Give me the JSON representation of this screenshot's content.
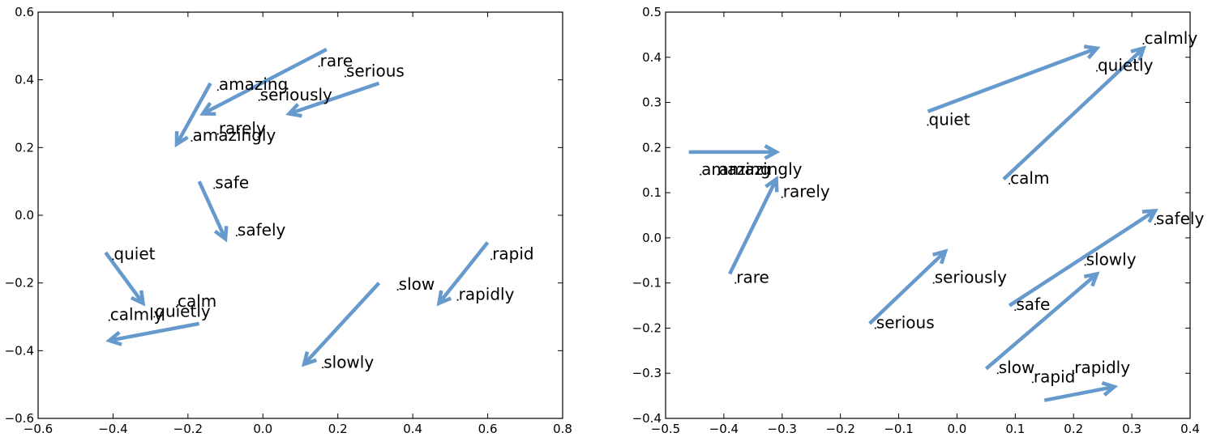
{
  "chart_data": [
    {
      "type": "scatter",
      "subtype": "word-vector-arrows",
      "title": "",
      "xlabel": "",
      "ylabel": "",
      "xlim": [
        -0.6,
        0.8
      ],
      "ylim": [
        -0.6,
        0.6
      ],
      "xticks": [
        "−0.6",
        "−0.4",
        "−0.2",
        "0.0",
        "0.2",
        "0.4",
        "0.6",
        "0.8"
      ],
      "xtick_values": [
        -0.6,
        -0.4,
        -0.2,
        0.0,
        0.2,
        0.4,
        0.6,
        0.8
      ],
      "yticks": [
        "−0.6",
        "−0.4",
        "−0.2",
        "0.0",
        "0.2",
        "0.4",
        "0.6"
      ],
      "ytick_values": [
        -0.6,
        -0.4,
        -0.2,
        0.0,
        0.2,
        0.4,
        0.6
      ],
      "grid": false,
      "arrow_color": "#6699cc",
      "labels": [
        {
          "text": "rare",
          "x": 0.15,
          "y": 0.44
        },
        {
          "text": "serious",
          "x": 0.22,
          "y": 0.41
        },
        {
          "text": "amazing",
          "x": -0.12,
          "y": 0.37
        },
        {
          "text": "seriously",
          "x": -0.01,
          "y": 0.34
        },
        {
          "text": "rarely",
          "x": -0.12,
          "y": 0.24
        },
        {
          "text": "amazingly",
          "x": -0.19,
          "y": 0.22
        },
        {
          "text": "safe",
          "x": -0.13,
          "y": 0.08
        },
        {
          "text": "safely",
          "x": -0.07,
          "y": -0.06
        },
        {
          "text": "quiet",
          "x": -0.4,
          "y": -0.13
        },
        {
          "text": "rapid",
          "x": 0.61,
          "y": -0.13
        },
        {
          "text": "slow",
          "x": 0.36,
          "y": -0.22
        },
        {
          "text": "rapidly",
          "x": 0.52,
          "y": -0.25
        },
        {
          "text": "calm",
          "x": -0.23,
          "y": -0.27
        },
        {
          "text": "quietly",
          "x": -0.29,
          "y": -0.3
        },
        {
          "text": "calmly",
          "x": -0.41,
          "y": -0.31
        },
        {
          "text": "slowly",
          "x": 0.16,
          "y": -0.45
        }
      ],
      "arrows": [
        {
          "from": "rare",
          "to": "rarely",
          "x1": 0.17,
          "y1": 0.49,
          "x2": -0.16,
          "y2": 0.3
        },
        {
          "from": "serious",
          "to": "seriously",
          "x1": 0.31,
          "y1": 0.39,
          "x2": 0.07,
          "y2": 0.3
        },
        {
          "from": "amazing",
          "to": "amazingly",
          "x1": -0.14,
          "y1": 0.39,
          "x2": -0.23,
          "y2": 0.21
        },
        {
          "from": "safe",
          "to": "safely",
          "x1": -0.17,
          "y1": 0.1,
          "x2": -0.1,
          "y2": -0.07
        },
        {
          "from": "quiet",
          "to": "quietly",
          "x1": -0.42,
          "y1": -0.11,
          "x2": -0.32,
          "y2": -0.26
        },
        {
          "from": "calm",
          "to": "calmly",
          "x1": -0.17,
          "y1": -0.32,
          "x2": -0.41,
          "y2": -0.37
        },
        {
          "from": "rapid",
          "to": "rapidly",
          "x1": 0.6,
          "y1": -0.08,
          "x2": 0.47,
          "y2": -0.26
        },
        {
          "from": "slow",
          "to": "slowly",
          "x1": 0.31,
          "y1": -0.2,
          "x2": 0.11,
          "y2": -0.44
        }
      ]
    },
    {
      "type": "scatter",
      "subtype": "word-vector-arrows",
      "title": "",
      "xlabel": "",
      "ylabel": "",
      "xlim": [
        -0.5,
        0.4
      ],
      "ylim": [
        -0.4,
        0.5
      ],
      "xticks": [
        "−0.5",
        "−0.4",
        "−0.3",
        "−0.2",
        "−0.1",
        "0.0",
        "0.1",
        "0.2",
        "0.3",
        "0.4"
      ],
      "xtick_values": [
        -0.5,
        -0.4,
        -0.3,
        -0.2,
        -0.1,
        0.0,
        0.1,
        0.2,
        0.3,
        0.4
      ],
      "yticks": [
        "−0.4",
        "−0.3",
        "−0.2",
        "−0.1",
        "0.0",
        "0.1",
        "0.2",
        "0.3",
        "0.4",
        "0.5"
      ],
      "ytick_values": [
        -0.4,
        -0.3,
        -0.2,
        -0.1,
        0.0,
        0.1,
        0.2,
        0.3,
        0.4,
        0.5
      ],
      "grid": false,
      "arrow_color": "#6699cc",
      "labels": [
        {
          "text": "calmly",
          "x": 0.32,
          "y": 0.43
        },
        {
          "text": "quietly",
          "x": 0.24,
          "y": 0.37
        },
        {
          "text": "quiet",
          "x": -0.05,
          "y": 0.25
        },
        {
          "text": "amazing",
          "x": -0.44,
          "y": 0.14
        },
        {
          "text": "amazingly",
          "x": -0.41,
          "y": 0.14
        },
        {
          "text": "calm",
          "x": 0.09,
          "y": 0.12
        },
        {
          "text": "rarely",
          "x": -0.3,
          "y": 0.09
        },
        {
          "text": "safely",
          "x": 0.34,
          "y": 0.03
        },
        {
          "text": "slowly",
          "x": 0.22,
          "y": -0.06
        },
        {
          "text": "rare",
          "x": -0.38,
          "y": -0.1
        },
        {
          "text": "seriously",
          "x": -0.04,
          "y": -0.1
        },
        {
          "text": "safe",
          "x": 0.1,
          "y": -0.16
        },
        {
          "text": "serious",
          "x": -0.14,
          "y": -0.2
        },
        {
          "text": "slow",
          "x": 0.07,
          "y": -0.3
        },
        {
          "text": "rapidly",
          "x": 0.2,
          "y": -0.3
        },
        {
          "text": "rapid",
          "x": 0.13,
          "y": -0.32
        }
      ],
      "arrows": [
        {
          "from": "amazing",
          "to": "amazingly",
          "x1": -0.46,
          "y1": 0.19,
          "x2": -0.31,
          "y2": 0.19
        },
        {
          "from": "quiet",
          "to": "quietly",
          "x1": -0.05,
          "y1": 0.28,
          "x2": 0.24,
          "y2": 0.42
        },
        {
          "from": "calm",
          "to": "calmly",
          "x1": 0.08,
          "y1": 0.13,
          "x2": 0.32,
          "y2": 0.42
        },
        {
          "from": "rare",
          "to": "rarely",
          "x1": -0.39,
          "y1": -0.08,
          "x2": -0.31,
          "y2": 0.13
        },
        {
          "from": "serious",
          "to": "seriously",
          "x1": -0.15,
          "y1": -0.19,
          "x2": -0.02,
          "y2": -0.03
        },
        {
          "from": "safe",
          "to": "safely",
          "x1": 0.09,
          "y1": -0.15,
          "x2": 0.34,
          "y2": 0.06
        },
        {
          "from": "slow",
          "to": "slowly",
          "x1": 0.05,
          "y1": -0.29,
          "x2": 0.24,
          "y2": -0.08
        },
        {
          "from": "rapid",
          "to": "rapidly",
          "x1": 0.15,
          "y1": -0.36,
          "x2": 0.27,
          "y2": -0.33
        }
      ]
    }
  ]
}
